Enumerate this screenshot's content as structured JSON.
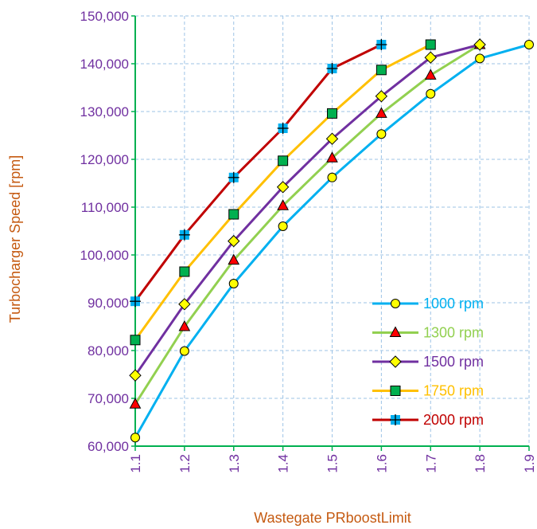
{
  "chart_data": {
    "type": "line",
    "title": "",
    "xlabel": "Wastegate PRboostLimit",
    "ylabel": "Turbocharger Speed [rpm]",
    "xlim": [
      1.1,
      1.9
    ],
    "ylim": [
      60000,
      150000
    ],
    "x_ticks": [
      "1.1",
      "1.2",
      "1.3",
      "1.4",
      "1.5",
      "1.6",
      "1.7",
      "1.8",
      "1.9"
    ],
    "y_ticks": [
      "60,000",
      "70,000",
      "80,000",
      "90,000",
      "100,000",
      "110,000",
      "120,000",
      "130,000",
      "140,000",
      "150,000"
    ],
    "grid": true,
    "legend_position": "bottom-right",
    "series": [
      {
        "name": "1000 rpm",
        "color": "#00b0f0",
        "marker": "circle",
        "marker_fill": "#ffff00",
        "x": [
          1.1,
          1.2,
          1.3,
          1.4,
          1.5,
          1.6,
          1.7,
          1.8,
          1.9
        ],
        "y": [
          61800,
          79900,
          94000,
          106000,
          116200,
          125300,
          133700,
          141100,
          144000
        ]
      },
      {
        "name": "1300 rpm",
        "color": "#92d050",
        "marker": "triangle",
        "marker_fill": "#ff0000",
        "x": [
          1.1,
          1.2,
          1.3,
          1.4,
          1.5,
          1.6,
          1.7,
          1.8
        ],
        "y": [
          68800,
          85000,
          98900,
          110300,
          120300,
          129600,
          137600,
          144000
        ]
      },
      {
        "name": "1500 rpm",
        "color": "#7030a0",
        "marker": "diamond",
        "marker_fill": "#ffff00",
        "x": [
          1.1,
          1.2,
          1.3,
          1.4,
          1.5,
          1.6,
          1.7,
          1.8
        ],
        "y": [
          74800,
          89700,
          102900,
          114200,
          124300,
          133200,
          141300,
          144000
        ]
      },
      {
        "name": "1750 rpm",
        "color": "#ffc000",
        "marker": "square",
        "marker_fill": "#00b050",
        "x": [
          1.1,
          1.2,
          1.3,
          1.4,
          1.5,
          1.6,
          1.7
        ],
        "y": [
          82200,
          96500,
          108500,
          119700,
          129600,
          138700,
          144000
        ]
      },
      {
        "name": "2000 rpm",
        "color": "#c00000",
        "marker": "plus-square",
        "marker_fill": "#00b0f0",
        "x": [
          1.1,
          1.2,
          1.3,
          1.4,
          1.5,
          1.6
        ],
        "y": [
          90300,
          104200,
          116200,
          126500,
          139000,
          144000
        ]
      }
    ]
  }
}
